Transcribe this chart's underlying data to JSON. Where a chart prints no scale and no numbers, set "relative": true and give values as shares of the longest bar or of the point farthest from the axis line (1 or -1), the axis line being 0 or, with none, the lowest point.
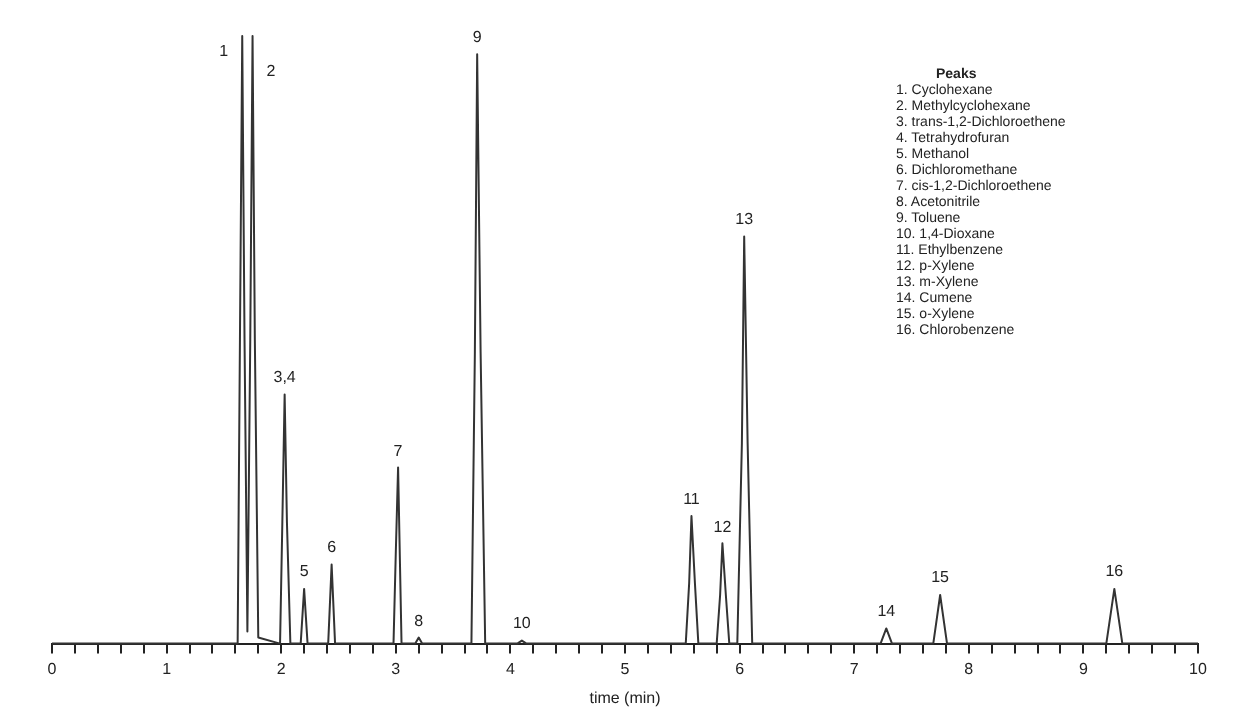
{
  "chart_data": {
    "type": "line",
    "relative": true,
    "xlabel": "time (min)",
    "x": [
      0,
      1.62,
      1.64,
      1.66,
      1.68,
      1.705,
      1.73,
      1.75,
      1.77,
      1.8,
      1.99,
      2.01,
      2.03,
      2.05,
      2.08,
      2.17,
      2.2,
      2.23,
      2.41,
      2.44,
      2.47,
      2.98,
      3.0,
      3.02,
      3.05,
      3.17,
      3.2,
      3.23,
      3.66,
      3.69,
      3.71,
      3.74,
      3.78,
      4.06,
      4.1,
      4.14,
      5.53,
      5.56,
      5.58,
      5.61,
      5.64,
      5.8,
      5.83,
      5.85,
      5.88,
      5.91,
      5.98,
      6.02,
      6.04,
      6.07,
      6.11,
      7.23,
      7.28,
      7.33,
      7.69,
      7.75,
      7.81,
      9.2,
      9.27,
      9.34,
      10
    ],
    "series": [
      {
        "color": "#333333",
        "values": [
          0,
          0,
          0.5,
          1,
          0.5,
          0.02,
          0.5,
          1,
          0.5,
          0.01,
          0,
          0.2,
          0.41,
          0.2,
          0,
          0,
          0.09,
          0,
          0,
          0.13,
          0,
          0,
          0.15,
          0.29,
          0,
          0,
          0.01,
          0,
          0,
          0.48,
          0.97,
          0.48,
          0,
          0,
          0.005,
          0,
          0,
          0.1,
          0.21,
          0.1,
          0,
          0,
          0.08,
          0.165,
          0.08,
          0,
          0,
          0.33,
          0.67,
          0.33,
          0,
          0,
          0.025,
          0,
          0,
          0.08,
          0,
          0,
          0.09,
          0,
          0
        ]
      }
    ],
    "xlim": [
      0,
      10
    ],
    "xticks": [
      0,
      {
        "value": 0.2,
        "label": null
      },
      {
        "value": 0.4,
        "label": null
      },
      {
        "value": 0.6,
        "label": null
      },
      {
        "value": 0.8,
        "label": null
      },
      1,
      {
        "value": 1.2,
        "label": null
      },
      {
        "value": 1.4,
        "label": null
      },
      {
        "value": 1.6,
        "label": null
      },
      {
        "value": 1.8,
        "label": null
      },
      2,
      {
        "value": 2.2,
        "label": null
      },
      {
        "value": 2.4,
        "label": null
      },
      {
        "value": 2.6,
        "label": null
      },
      {
        "value": 2.8,
        "label": null
      },
      3,
      {
        "value": 3.2,
        "label": null
      },
      {
        "value": 3.4,
        "label": null
      },
      {
        "value": 3.6,
        "label": null
      },
      {
        "value": 3.8,
        "label": null
      },
      4,
      {
        "value": 4.2,
        "label": null
      },
      {
        "value": 4.4,
        "label": null
      },
      {
        "value": 4.6,
        "label": null
      },
      {
        "value": 4.8,
        "label": null
      },
      5,
      {
        "value": 5.2,
        "label": null
      },
      {
        "value": 5.4,
        "label": null
      },
      {
        "value": 5.6,
        "label": null
      },
      {
        "value": 5.8,
        "label": null
      },
      6,
      {
        "value": 6.2,
        "label": null
      },
      {
        "value": 6.4,
        "label": null
      },
      {
        "value": 6.6,
        "label": null
      },
      {
        "value": 6.8,
        "label": null
      },
      7,
      {
        "value": 7.2,
        "label": null
      },
      {
        "value": 7.4,
        "label": null
      },
      {
        "value": 7.6,
        "label": null
      },
      {
        "value": 7.8,
        "label": null
      },
      8,
      {
        "value": 8.2,
        "label": null
      },
      {
        "value": 8.4,
        "label": null
      },
      {
        "value": 8.6,
        "label": null
      },
      {
        "value": 8.8,
        "label": null
      },
      9,
      {
        "value": 9.2,
        "label": null
      },
      {
        "value": 9.4,
        "label": null
      },
      {
        "value": 9.6,
        "label": null
      },
      {
        "value": 9.8,
        "label": null
      },
      10
    ],
    "grid": false,
    "legend": false,
    "marker": "none",
    "line_style": "solid",
    "annotations": [
      {
        "text": "1",
        "x": 1.66,
        "y": 1
      },
      {
        "text": "2",
        "x": 1.75,
        "y": 1
      },
      {
        "text": "3,4",
        "x": 2.03,
        "y": 0.41
      },
      {
        "text": "5",
        "x": 2.2,
        "y": 0.09
      },
      {
        "text": "6",
        "x": 2.44,
        "y": 0.13
      },
      {
        "text": "7",
        "x": 3.02,
        "y": 0.29
      },
      {
        "text": "8",
        "x": 3.2,
        "y": 0.01
      },
      {
        "text": "9",
        "x": 3.71,
        "y": 0.97
      },
      {
        "text": "10",
        "x": 4.1,
        "y": 0.005
      },
      {
        "text": "11",
        "x": 5.58,
        "y": 0.21
      },
      {
        "text": "12",
        "x": 5.85,
        "y": 0.165
      },
      {
        "text": "13",
        "x": 6.04,
        "y": 0.67
      },
      {
        "text": "14",
        "x": 7.28,
        "y": 0.025
      },
      {
        "text": "15",
        "x": 7.75,
        "y": 0.08
      },
      {
        "text": "16",
        "x": 9.27,
        "y": 0.09
      },
      "Peaks",
      "1. Cyclohexane",
      "2. Methylcyclohexane",
      "3. trans-1,2-Dichloroethene",
      "4. Tetrahydrofuran",
      "5. Methanol",
      "6. Dichloromethane",
      "7. cis-1,2-Dichloroethene",
      "8. Acetonitrile",
      "9. Toluene",
      "10. 1,4-Dioxane",
      "11. Ethylbenzene",
      "12. p-Xylene",
      "13. m-Xylene",
      "14. Cumene",
      "15. o-Xylene",
      "16. Chlorobenzene"
    ]
  }
}
